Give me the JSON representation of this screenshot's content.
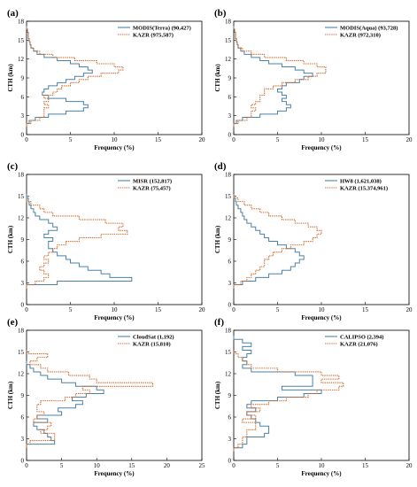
{
  "colors": {
    "blue": "#4a82a8",
    "orange": "#d2692c",
    "axis": "#000000"
  },
  "chart_data": [
    {
      "type": "line",
      "panel_label": "(a)",
      "xlabel": "Frequency (%)",
      "ylabel": "CTH (km)",
      "xlim": [
        0,
        20
      ],
      "ylim": [
        0,
        18
      ],
      "xticks": [
        "0",
        "5",
        "10",
        "15",
        "20"
      ],
      "yticks": [
        "0",
        "3",
        "6",
        "9",
        "12",
        "15",
        "18"
      ],
      "legend_position": "top-right",
      "series": [
        {
          "name": "MODIS(Terra) (90,427)",
          "style": "solid",
          "color": "#4a82a8",
          "y": [
            1.5,
            2.0,
            2.5,
            3.0,
            3.5,
            4.0,
            4.5,
            5.0,
            5.5,
            6.0,
            6.5,
            7.0,
            7.5,
            8.0,
            8.5,
            9.0,
            9.5,
            10.0,
            10.5,
            11.0,
            11.5,
            12.0,
            12.5,
            13.0,
            13.5,
            14.0,
            14.5,
            15.0,
            15.5,
            16.0,
            16.5,
            17.0
          ],
          "x": [
            0.0,
            0.3,
            1.0,
            2.5,
            4.5,
            6.5,
            7.0,
            6.5,
            4.5,
            2.5,
            1.8,
            2.0,
            2.5,
            3.5,
            4.5,
            5.5,
            6.5,
            7.5,
            7.0,
            6.0,
            5.0,
            3.5,
            2.0,
            1.2,
            0.8,
            0.5,
            0.4,
            0.3,
            0.2,
            0.2,
            0.1,
            0.0
          ]
        },
        {
          "name": "KAZR (975,587)",
          "style": "dotted",
          "color": "#d2692c",
          "y": [
            1.5,
            2.0,
            2.5,
            3.0,
            3.5,
            4.0,
            4.5,
            5.0,
            5.5,
            6.0,
            6.5,
            7.0,
            7.5,
            8.0,
            8.5,
            9.0,
            9.5,
            10.0,
            10.5,
            11.0,
            11.5,
            12.0,
            12.5,
            13.0,
            13.5,
            14.0,
            14.5,
            15.0,
            15.5,
            16.0,
            16.5,
            17.0
          ],
          "x": [
            0.0,
            0.5,
            1.5,
            2.0,
            2.0,
            2.0,
            2.5,
            2.0,
            2.5,
            2.0,
            3.0,
            3.5,
            4.0,
            5.0,
            6.0,
            7.0,
            8.5,
            10.5,
            11.0,
            10.0,
            8.0,
            5.5,
            3.0,
            1.5,
            0.8,
            0.5,
            0.4,
            0.3,
            0.2,
            0.2,
            0.1,
            0.0
          ]
        }
      ]
    },
    {
      "type": "line",
      "panel_label": "(b)",
      "xlabel": "Frequency (%)",
      "ylabel": "CTH (km)",
      "xlim": [
        0,
        20
      ],
      "ylim": [
        0,
        18
      ],
      "xticks": [
        "0",
        "5",
        "10",
        "15",
        "20"
      ],
      "yticks": [
        "0",
        "3",
        "6",
        "9",
        "12",
        "15",
        "18"
      ],
      "legend_position": "top-right",
      "series": [
        {
          "name": "MODIS(Aqua) (93,728)",
          "style": "solid",
          "color": "#4a82a8",
          "y": [
            1.5,
            2.0,
            2.5,
            3.0,
            3.5,
            4.0,
            4.5,
            5.0,
            5.5,
            6.0,
            6.5,
            7.0,
            7.5,
            8.0,
            8.5,
            9.0,
            9.5,
            10.0,
            10.5,
            11.0,
            11.5,
            12.0,
            12.5,
            13.0,
            13.5,
            14.0,
            14.5,
            15.0,
            15.5,
            16.0,
            16.5,
            17.0
          ],
          "x": [
            0.0,
            0.3,
            1.0,
            3.0,
            5.0,
            6.0,
            6.5,
            6.0,
            5.5,
            6.0,
            5.5,
            5.0,
            5.5,
            6.0,
            7.5,
            8.0,
            9.0,
            8.0,
            7.0,
            5.5,
            4.0,
            3.0,
            2.0,
            1.2,
            0.8,
            0.5,
            0.4,
            0.3,
            0.2,
            0.2,
            0.1,
            0.0
          ]
        },
        {
          "name": "KAZR (972,310)",
          "style": "dotted",
          "color": "#d2692c",
          "y": [
            1.5,
            2.0,
            2.5,
            3.0,
            3.5,
            4.0,
            4.5,
            5.0,
            5.5,
            6.0,
            6.5,
            7.0,
            7.5,
            8.0,
            8.5,
            9.0,
            9.5,
            10.0,
            10.5,
            11.0,
            11.5,
            12.0,
            12.5,
            13.0,
            13.5,
            14.0,
            14.5,
            15.0,
            15.5,
            16.0,
            16.5,
            17.0
          ],
          "x": [
            0.0,
            0.5,
            1.5,
            2.0,
            2.0,
            2.5,
            2.0,
            2.5,
            3.0,
            3.0,
            3.5,
            3.5,
            4.5,
            5.5,
            7.0,
            8.5,
            9.5,
            10.5,
            10.5,
            9.5,
            8.0,
            6.0,
            3.5,
            2.0,
            1.0,
            0.5,
            0.4,
            0.3,
            0.2,
            0.2,
            0.1,
            0.0
          ]
        }
      ]
    },
    {
      "type": "line",
      "panel_label": "(c)",
      "xlabel": "Frequency (%)",
      "ylabel": "CTH (km)",
      "xlim": [
        0,
        20
      ],
      "ylim": [
        0,
        18
      ],
      "xticks": [
        "0",
        "5",
        "10",
        "15",
        "20"
      ],
      "yticks": [
        "0",
        "3",
        "6",
        "9",
        "12",
        "15",
        "18"
      ],
      "legend_position": "top-right",
      "series": [
        {
          "name": "MISR (152,817)",
          "style": "solid",
          "color": "#4a82a8",
          "y": [
            2.5,
            3.0,
            3.5,
            4.0,
            4.5,
            5.0,
            5.5,
            6.0,
            6.5,
            7.0,
            7.5,
            8.0,
            8.5,
            9.0,
            9.5,
            10.0,
            10.5,
            11.0,
            11.5,
            12.0,
            12.5,
            13.0,
            13.5,
            14.0,
            14.5,
            15.0
          ],
          "x": [
            0.0,
            3.5,
            12.0,
            9.5,
            8.5,
            7.0,
            6.0,
            5.0,
            4.5,
            3.5,
            3.0,
            2.5,
            2.5,
            3.0,
            2.0,
            2.5,
            3.5,
            3.0,
            2.5,
            1.5,
            1.0,
            0.8,
            0.5,
            0.3,
            0.2,
            0.0
          ]
        },
        {
          "name": "KAZR (75,457)",
          "style": "dotted",
          "color": "#d2692c",
          "y": [
            2.5,
            3.0,
            3.5,
            4.0,
            4.5,
            5.0,
            5.5,
            6.0,
            6.5,
            7.0,
            7.5,
            8.0,
            8.5,
            9.0,
            9.5,
            10.0,
            10.5,
            11.0,
            11.5,
            12.0,
            12.5,
            13.0,
            13.5,
            14.0,
            14.5
          ],
          "x": [
            0.0,
            1.0,
            2.0,
            2.5,
            2.0,
            1.5,
            2.0,
            2.5,
            2.0,
            2.5,
            3.0,
            3.5,
            4.5,
            6.0,
            8.5,
            11.5,
            10.5,
            11.0,
            9.0,
            6.0,
            3.0,
            2.0,
            1.5,
            0.5,
            0.0
          ]
        }
      ]
    },
    {
      "type": "line",
      "panel_label": "(d)",
      "xlabel": "Frequency (%)",
      "ylabel": "CTH (km)",
      "xlim": [
        0,
        20
      ],
      "ylim": [
        0,
        18
      ],
      "xticks": [
        "0",
        "5",
        "10",
        "15",
        "20"
      ],
      "yticks": [
        "0",
        "3",
        "6",
        "9",
        "12",
        "15",
        "18"
      ],
      "legend_position": "top-right",
      "series": [
        {
          "name": "HW8 (1,621,038)",
          "style": "solid",
          "color": "#4a82a8",
          "y": [
            2.5,
            3.0,
            3.5,
            4.0,
            4.5,
            5.0,
            5.5,
            6.0,
            6.5,
            7.0,
            7.5,
            8.0,
            8.5,
            9.0,
            9.5,
            10.0,
            10.5,
            11.0,
            11.5,
            12.0,
            12.5,
            13.0,
            13.5,
            14.0,
            14.5,
            15.0
          ],
          "x": [
            0.0,
            1.0,
            2.5,
            4.0,
            5.5,
            6.5,
            7.0,
            7.5,
            8.0,
            7.5,
            7.0,
            6.0,
            5.0,
            4.0,
            3.5,
            3.0,
            2.5,
            2.0,
            1.5,
            1.2,
            1.0,
            0.8,
            0.5,
            0.3,
            0.2,
            0.0
          ]
        },
        {
          "name": "KAZR (15,374,961)",
          "style": "dotted",
          "color": "#d2692c",
          "y": [
            2.5,
            3.0,
            3.5,
            4.0,
            4.5,
            5.0,
            5.5,
            6.0,
            6.5,
            7.0,
            7.5,
            8.0,
            8.5,
            9.0,
            9.5,
            10.0,
            10.5,
            11.0,
            11.5,
            12.0,
            12.5,
            13.0,
            13.5,
            14.0,
            14.5,
            15.0
          ],
          "x": [
            0.0,
            0.8,
            1.5,
            2.0,
            2.5,
            3.0,
            3.5,
            3.5,
            4.0,
            4.5,
            5.5,
            6.5,
            8.0,
            9.0,
            9.5,
            10.0,
            9.5,
            8.5,
            7.0,
            5.5,
            4.0,
            3.0,
            2.0,
            1.2,
            0.5,
            0.0
          ]
        }
      ]
    },
    {
      "type": "line",
      "panel_label": "(e)",
      "xlabel": "Frequency (%)",
      "ylabel": "CTH (km)",
      "xlim": [
        0,
        25
      ],
      "ylim": [
        0,
        18
      ],
      "xticks": [
        "0",
        "5",
        "10",
        "15",
        "20",
        "25"
      ],
      "yticks": [
        "0",
        "3",
        "6",
        "9",
        "12",
        "15",
        "18"
      ],
      "legend_position": "top-right",
      "series": [
        {
          "name": "CloudSat (1,192)",
          "style": "solid",
          "color": "#4a82a8",
          "y": [
            2.0,
            2.5,
            3.0,
            3.5,
            4.0,
            4.5,
            5.0,
            5.5,
            6.0,
            6.5,
            7.0,
            7.5,
            8.0,
            8.5,
            9.0,
            9.5,
            10.0,
            10.5,
            11.0,
            11.5,
            12.0,
            12.5,
            13.0,
            13.5
          ],
          "x": [
            0.0,
            4.0,
            3.5,
            3.0,
            2.5,
            1.5,
            1.0,
            3.0,
            1.5,
            5.0,
            4.5,
            7.0,
            8.0,
            6.5,
            8.5,
            11.0,
            10.0,
            7.0,
            5.0,
            3.0,
            2.0,
            1.0,
            0.5,
            0.0
          ]
        },
        {
          "name": "KAZR (15,810)",
          "style": "dotted",
          "color": "#d2692c",
          "y": [
            2.0,
            2.5,
            3.0,
            3.5,
            4.0,
            4.5,
            5.0,
            5.5,
            6.0,
            6.5,
            7.0,
            7.5,
            8.0,
            8.5,
            9.0,
            9.5,
            10.0,
            10.5,
            11.0,
            11.5,
            12.0,
            12.5,
            13.0,
            13.5,
            14.0,
            14.5,
            15.0
          ],
          "x": [
            0.0,
            0.5,
            4.0,
            4.0,
            2.0,
            3.0,
            3.5,
            1.0,
            1.5,
            2.5,
            1.5,
            1.5,
            2.0,
            5.5,
            7.0,
            9.0,
            8.0,
            18.0,
            10.0,
            9.0,
            6.0,
            3.0,
            2.0,
            0.5,
            1.5,
            3.0,
            0.0
          ]
        }
      ]
    },
    {
      "type": "line",
      "panel_label": "(f)",
      "xlabel": "Frequency (%)",
      "ylabel": "CTH (km)",
      "xlim": [
        0,
        20
      ],
      "ylim": [
        0,
        18
      ],
      "xticks": [
        "0",
        "5",
        "10",
        "15",
        "20"
      ],
      "yticks": [
        "0",
        "3",
        "6",
        "9",
        "12",
        "15",
        "18"
      ],
      "legend_position": "top-right",
      "series": [
        {
          "name": "CALIPSO (2,394)",
          "style": "solid",
          "color": "#4a82a8",
          "y": [
            1.5,
            2.0,
            2.5,
            3.0,
            3.5,
            4.0,
            4.5,
            5.0,
            5.5,
            6.0,
            6.5,
            7.0,
            7.5,
            8.0,
            8.5,
            9.0,
            9.5,
            10.0,
            10.5,
            11.0,
            11.5,
            12.0,
            12.5,
            13.0,
            13.5,
            14.0,
            14.5,
            15.0,
            15.5,
            16.0,
            16.5,
            17.0
          ],
          "x": [
            0.0,
            1.0,
            1.5,
            1.5,
            3.5,
            4.0,
            4.0,
            3.0,
            2.5,
            2.0,
            1.5,
            2.5,
            1.5,
            2.0,
            5.0,
            8.0,
            10.0,
            5.5,
            9.0,
            9.0,
            9.0,
            7.0,
            2.0,
            1.0,
            1.5,
            1.0,
            1.5,
            2.0,
            1.0,
            2.0,
            1.0,
            0.0
          ]
        },
        {
          "name": "KAZR (21,076)",
          "style": "dotted",
          "color": "#d2692c",
          "y": [
            1.5,
            2.0,
            2.5,
            3.0,
            3.5,
            4.0,
            4.5,
            5.0,
            5.5,
            6.0,
            6.5,
            7.0,
            7.5,
            8.0,
            8.5,
            9.0,
            9.5,
            10.0,
            10.5,
            11.0,
            11.5,
            12.0,
            12.5,
            13.0,
            13.5,
            14.0,
            14.5,
            15.0
          ],
          "x": [
            0.0,
            0.5,
            1.0,
            1.0,
            1.5,
            1.5,
            2.5,
            2.5,
            1.0,
            2.5,
            1.5,
            3.0,
            2.0,
            4.0,
            6.0,
            8.5,
            9.5,
            12.0,
            12.5,
            10.0,
            12.0,
            10.0,
            5.0,
            2.0,
            1.5,
            1.0,
            0.5,
            0.0
          ]
        }
      ]
    }
  ]
}
